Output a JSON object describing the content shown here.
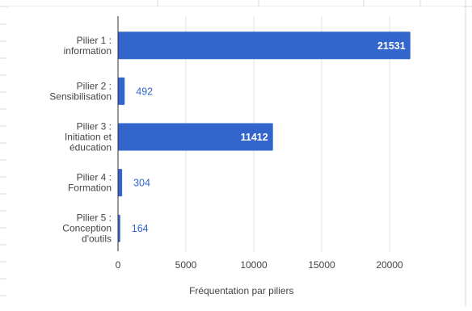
{
  "colors": {
    "bar": "#3366cc",
    "grid": "#e0e0e0",
    "axis": "#333333",
    "tick_text": "#444444",
    "outside_label": "#3366cc",
    "inside_label": "#ffffff",
    "sheet_line": "#d9d9d9"
  },
  "chart_data": {
    "type": "bar",
    "orientation": "horizontal",
    "title": "",
    "xlabel": "Fréquentation par piliers",
    "ylabel": "",
    "xlim": [
      0,
      25000
    ],
    "xticks": [
      0,
      5000,
      10000,
      15000,
      20000
    ],
    "grid": true,
    "legend": "none",
    "categories": [
      [
        "Pilier 1 :",
        "information"
      ],
      [
        "Pilier 2 :",
        "Sensibilisation"
      ],
      [
        "Pilier 3 :",
        "Initiation et",
        "éducation"
      ],
      [
        "Pilier 4 :",
        "Formation"
      ],
      [
        "Pilier 5 :",
        "Conception",
        "d'outils"
      ]
    ],
    "values": [
      21531,
      492,
      11412,
      304,
      164
    ],
    "data_labels": [
      "21531",
      "492",
      "11412",
      "304",
      "164"
    ]
  }
}
